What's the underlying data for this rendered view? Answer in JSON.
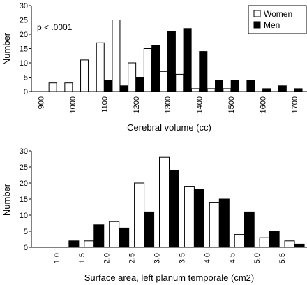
{
  "chart_data": [
    {
      "type": "bar",
      "ylabel": "Number",
      "xlabel": "Cerebral volume (cc)",
      "ylim": [
        0,
        30
      ],
      "yticks": [
        0,
        5,
        10,
        15,
        20,
        25,
        30
      ],
      "xlim": [
        870,
        1740
      ],
      "xticks": [
        900,
        1000,
        1100,
        1200,
        1300,
        1400,
        1500,
        1600,
        1700
      ],
      "annotation": "p < .0001",
      "legend_position": "top-right",
      "series": [
        {
          "name": "Women",
          "color": "#ffffff",
          "x": [
            937.5,
            987.5,
            1037.5,
            1087.5,
            1137.5,
            1187.5,
            1237.5,
            1287.5,
            1337.5,
            1387.5,
            1437.5,
            1487.5
          ],
          "values": [
            3,
            3,
            11,
            17,
            25,
            10,
            15,
            7,
            6,
            1,
            1,
            1
          ]
        },
        {
          "name": "Men",
          "color": "#000000",
          "x": [
            1112.5,
            1162.5,
            1212.5,
            1262.5,
            1312.5,
            1362.5,
            1412.5,
            1462.5,
            1512.5,
            1562.5,
            1612.5,
            1662.5,
            1712.5
          ],
          "values": [
            4,
            2,
            5,
            16,
            21,
            22,
            14,
            4,
            4,
            4,
            1,
            2,
            1
          ]
        }
      ]
    },
    {
      "type": "bar",
      "ylabel": "Number",
      "xlabel": "Surface area, left planum temporale (cm2)",
      "ylim": [
        0,
        30
      ],
      "yticks": [
        0,
        5,
        10,
        15,
        20,
        25,
        30
      ],
      "xlim": [
        0.5,
        6.0
      ],
      "xticks": [
        "1.0",
        "1.5",
        "2.0",
        "2.5",
        "3.0",
        "3.5",
        "4.0",
        "4.5",
        "5.0",
        "5.5"
      ],
      "series": [
        {
          "name": "Women",
          "color": "#ffffff",
          "x": [
            1.25,
            1.75,
            2.25,
            2.75,
            3.25,
            3.75,
            4.25,
            4.75,
            5.25,
            5.75
          ],
          "values": [
            0,
            2,
            8,
            20,
            28,
            19,
            14,
            4,
            3,
            2
          ]
        },
        {
          "name": "Men",
          "color": "#000000",
          "x": [
            1.25,
            1.75,
            2.25,
            2.75,
            3.25,
            3.75,
            4.25,
            4.75,
            5.25,
            5.75
          ],
          "values": [
            2,
            7,
            6,
            11,
            24,
            18,
            15,
            11,
            5,
            1
          ]
        }
      ]
    }
  ]
}
